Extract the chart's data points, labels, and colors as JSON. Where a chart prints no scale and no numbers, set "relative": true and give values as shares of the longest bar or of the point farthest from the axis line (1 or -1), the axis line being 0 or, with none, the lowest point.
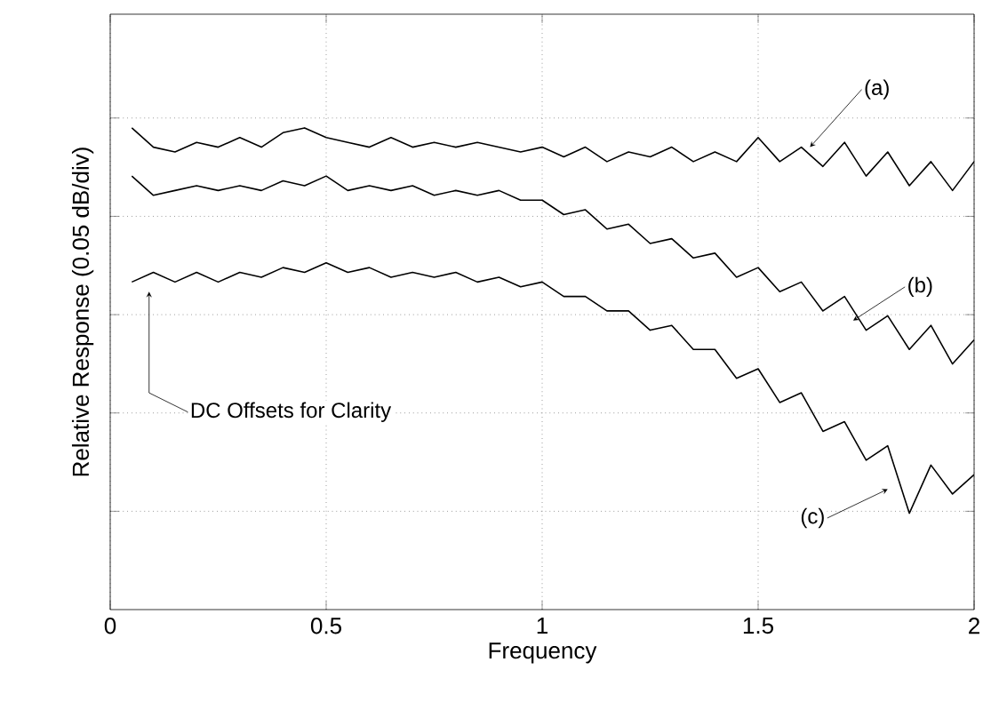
{
  "chart_data": {
    "type": "line",
    "relative": true,
    "xlabel": "Frequency",
    "ylabel": "Relative Response (0.05 dB/div)",
    "xlim": [
      0,
      2
    ],
    "xticks": [
      0,
      0.5,
      1,
      1.5,
      2
    ],
    "grid": true,
    "line_style": "solid",
    "series": [
      {
        "color": "#000000",
        "x": [
          0.05,
          0.1,
          0.15,
          0.2,
          0.25,
          0.3,
          0.35,
          0.4,
          0.45,
          0.5,
          0.55,
          0.6,
          0.65,
          0.7,
          0.75,
          0.8,
          0.85,
          0.9,
          0.95,
          1.0,
          1.05,
          1.1,
          1.15,
          1.2,
          1.25,
          1.3,
          1.35,
          1.4,
          1.45,
          1.5,
          1.55,
          1.6,
          1.65,
          1.7,
          1.75,
          1.8,
          1.85,
          1.9,
          1.95,
          2.0
        ],
        "values": [
          1.0,
          0.96,
          0.95,
          0.97,
          0.96,
          0.98,
          0.96,
          0.99,
          1.0,
          0.98,
          0.97,
          0.96,
          0.98,
          0.96,
          0.97,
          0.96,
          0.97,
          0.96,
          0.95,
          0.96,
          0.94,
          0.96,
          0.93,
          0.95,
          0.94,
          0.96,
          0.93,
          0.95,
          0.93,
          0.98,
          0.93,
          0.96,
          0.92,
          0.97,
          0.9,
          0.95,
          0.88,
          0.93,
          0.87,
          0.93
        ]
      },
      {
        "color": "#000000",
        "x": [
          0.05,
          0.1,
          0.15,
          0.2,
          0.25,
          0.3,
          0.35,
          0.4,
          0.45,
          0.5,
          0.55,
          0.6,
          0.65,
          0.7,
          0.75,
          0.8,
          0.85,
          0.9,
          0.95,
          1.0,
          1.05,
          1.1,
          1.15,
          1.2,
          1.25,
          1.3,
          1.35,
          1.4,
          1.45,
          1.5,
          1.55,
          1.6,
          1.65,
          1.7,
          1.75,
          1.8,
          1.85,
          1.9,
          1.95,
          2.0
        ],
        "values": [
          0.9,
          0.86,
          0.87,
          0.88,
          0.87,
          0.88,
          0.87,
          0.89,
          0.88,
          0.9,
          0.87,
          0.88,
          0.87,
          0.88,
          0.86,
          0.87,
          0.86,
          0.87,
          0.85,
          0.85,
          0.82,
          0.83,
          0.79,
          0.8,
          0.76,
          0.77,
          0.73,
          0.74,
          0.69,
          0.71,
          0.66,
          0.68,
          0.62,
          0.65,
          0.58,
          0.61,
          0.54,
          0.59,
          0.51,
          0.56
        ]
      },
      {
        "color": "#000000",
        "x": [
          0.05,
          0.1,
          0.15,
          0.2,
          0.25,
          0.3,
          0.35,
          0.4,
          0.45,
          0.5,
          0.55,
          0.6,
          0.65,
          0.7,
          0.75,
          0.8,
          0.85,
          0.9,
          0.95,
          1.0,
          1.05,
          1.1,
          1.15,
          1.2,
          1.25,
          1.3,
          1.35,
          1.4,
          1.45,
          1.5,
          1.55,
          1.6,
          1.65,
          1.7,
          1.75,
          1.8,
          1.85,
          1.9,
          1.95,
          2.0
        ],
        "values": [
          0.68,
          0.7,
          0.68,
          0.7,
          0.68,
          0.7,
          0.69,
          0.71,
          0.7,
          0.72,
          0.7,
          0.71,
          0.69,
          0.7,
          0.69,
          0.7,
          0.68,
          0.69,
          0.67,
          0.68,
          0.65,
          0.65,
          0.62,
          0.62,
          0.58,
          0.59,
          0.54,
          0.54,
          0.48,
          0.5,
          0.43,
          0.45,
          0.37,
          0.39,
          0.31,
          0.34,
          0.2,
          0.3,
          0.24,
          0.28
        ]
      }
    ],
    "annotations": [
      {
        "text": "(a)",
        "x": 1.62,
        "y": 0.96
      },
      {
        "text": "(b)",
        "x": 1.72,
        "y": 0.6
      },
      {
        "text": "(c)",
        "x": 1.8,
        "y": 0.25
      },
      "DC Offsets for Clarity"
    ]
  }
}
